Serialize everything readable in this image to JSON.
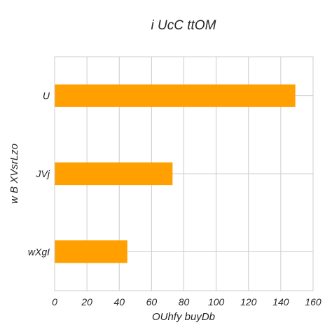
{
  "chart_data": {
    "type": "bar",
    "orientation": "horizontal",
    "title": "i UcC ttOM",
    "xlabel": "OUhfy buyDb",
    "ylabel": "w B XVsrLzo",
    "categories": [
      "U",
      "JVj",
      "wXgI"
    ],
    "values": [
      149,
      73,
      45
    ],
    "xlim": [
      0,
      160
    ],
    "xticks": [
      0,
      20,
      40,
      60,
      80,
      100,
      120,
      140,
      160
    ],
    "grid": true,
    "legend": "none",
    "bar_color": "#ff9f00"
  }
}
